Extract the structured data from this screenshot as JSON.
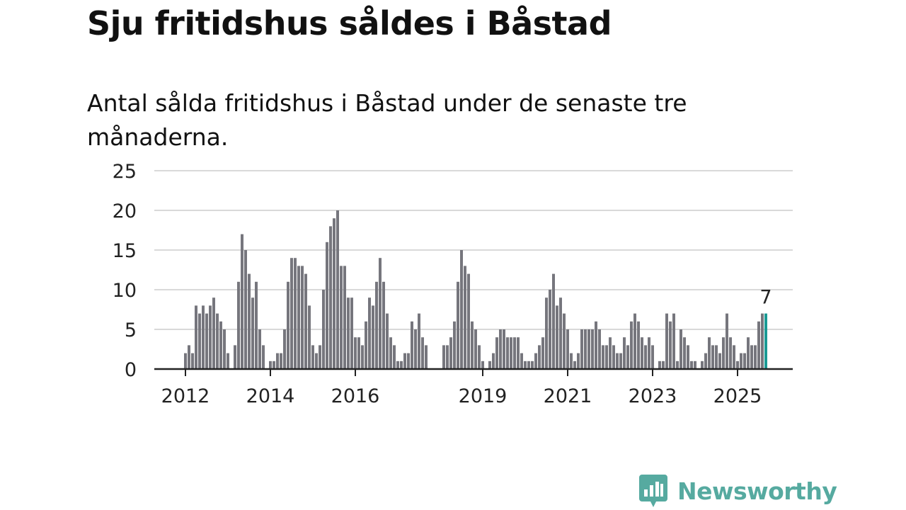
{
  "title": "Sju fritidshus såldes i Båstad",
  "subtitle": "Antal sålda fritidshus i Båstad under de senaste tre månaderna.",
  "logo": {
    "text": "Newsworthy",
    "icon": "newsworthy-chart-bubble-icon"
  },
  "colors": {
    "bar": "#76767d",
    "highlight": "#1a9a94",
    "grid": "#d9d9d9",
    "axis": "#222222",
    "logo": "#56aaa0"
  },
  "chart_data": {
    "type": "bar",
    "title": "Sju fritidshus såldes i Båstad",
    "subtitle": "Antal sålda fritidshus i Båstad under de senaste tre månaderna.",
    "xlabel": "",
    "ylabel": "",
    "ylim": [
      0,
      25
    ],
    "yticks": [
      "0",
      "5",
      "10",
      "15",
      "20",
      "25"
    ],
    "xtick_labels": [
      {
        "label": "2012",
        "index": 0
      },
      {
        "label": "2014",
        "index": 24
      },
      {
        "label": "2016",
        "index": 48
      },
      {
        "label": "2019",
        "index": 84
      },
      {
        "label": "2021",
        "index": 108
      },
      {
        "label": "2023",
        "index": 132
      },
      {
        "label": "2025",
        "index": 156
      }
    ],
    "grid": true,
    "frequency": "monthly",
    "first_period": "2012-01",
    "values": [
      2,
      3,
      2,
      8,
      7,
      8,
      7,
      8,
      9,
      7,
      6,
      5,
      2,
      0,
      3,
      11,
      17,
      15,
      12,
      9,
      11,
      5,
      3,
      0,
      1,
      1,
      2,
      2,
      5,
      11,
      14,
      14,
      13,
      13,
      12,
      8,
      3,
      2,
      3,
      10,
      16,
      18,
      19,
      20,
      13,
      13,
      9,
      9,
      4,
      4,
      3,
      6,
      9,
      8,
      11,
      14,
      11,
      7,
      4,
      3,
      1,
      1,
      2,
      2,
      6,
      5,
      7,
      4,
      3,
      null,
      null,
      null,
      null,
      3,
      3,
      4,
      6,
      11,
      15,
      13,
      12,
      6,
      5,
      3,
      1,
      0,
      1,
      2,
      4,
      5,
      5,
      4,
      4,
      4,
      4,
      2,
      1,
      1,
      1,
      2,
      3,
      4,
      9,
      10,
      12,
      8,
      9,
      7,
      5,
      2,
      1,
      2,
      5,
      5,
      5,
      5,
      6,
      5,
      3,
      3,
      4,
      3,
      2,
      2,
      4,
      3,
      6,
      7,
      6,
      4,
      3,
      4,
      3,
      0,
      1,
      1,
      7,
      6,
      7,
      1,
      5,
      4,
      3,
      1,
      1,
      0,
      1,
      2,
      4,
      3,
      3,
      2,
      4,
      7,
      4,
      3,
      1,
      2,
      2,
      4,
      3,
      3,
      6,
      7,
      7
    ],
    "highlight": {
      "index": 164,
      "label": "7"
    }
  }
}
